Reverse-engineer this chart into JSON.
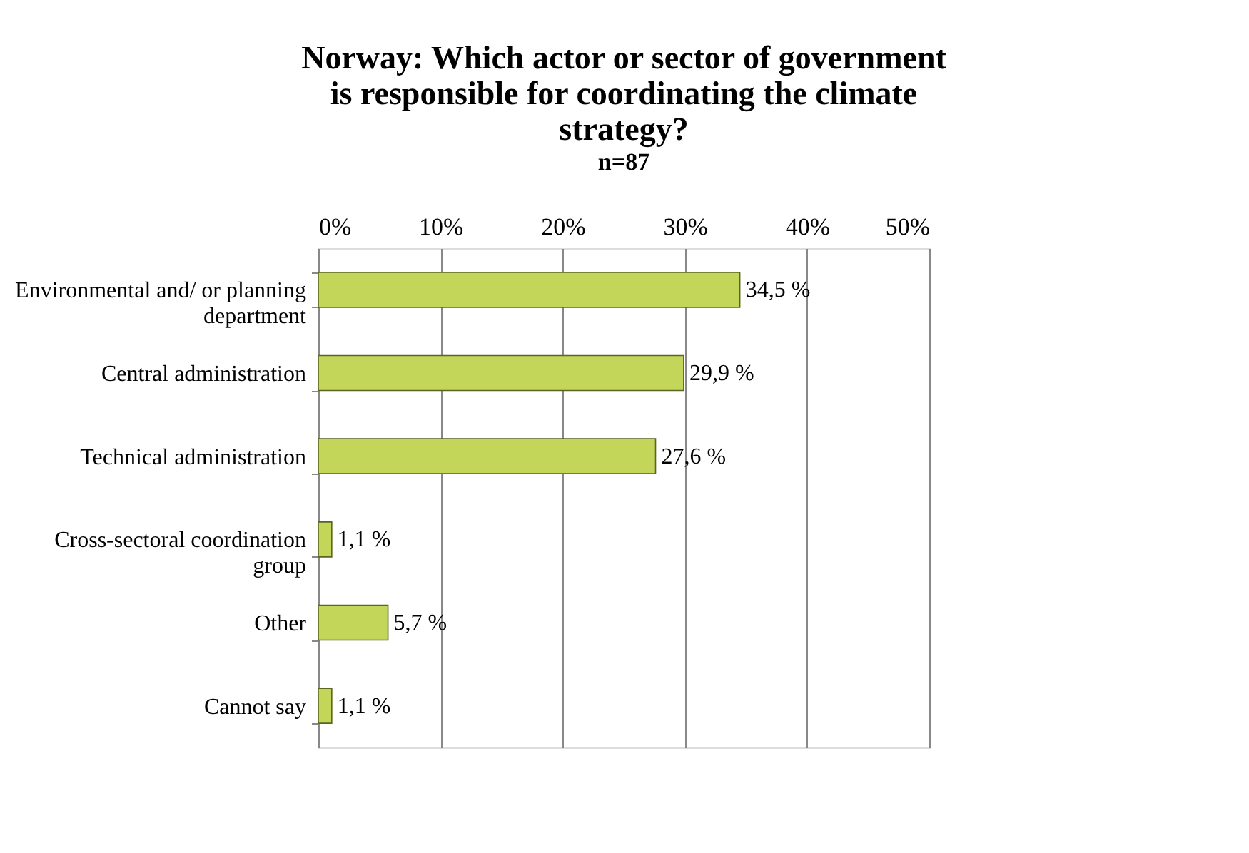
{
  "chart_data": {
    "type": "bar",
    "orientation": "horizontal",
    "title": "Norway: Which actor or sector of government is responsible for coordinating the climate strategy?",
    "subtitle": "n=87",
    "categories": [
      "Environmental and/ or planning department",
      "Central administration",
      "Technical administration",
      "Cross-sectoral coordination group",
      "Other",
      "Cannot say"
    ],
    "values": [
      34.5,
      29.9,
      27.6,
      1.1,
      5.7,
      1.1
    ],
    "value_labels": [
      "34,5 %",
      "29,9 %",
      "27,6 %",
      "1,1 %",
      "5,7 %",
      "1,1 %"
    ],
    "color": "#c4d65a",
    "xlim": [
      0,
      50
    ],
    "xticks": [
      {
        "value": 0,
        "label": "0%"
      },
      {
        "value": 10,
        "label": "10%"
      },
      {
        "value": 20,
        "label": "20%"
      },
      {
        "value": 30,
        "label": "30%"
      },
      {
        "value": 40,
        "label": "40%"
      },
      {
        "value": 50,
        "label": "50%"
      }
    ],
    "grid": "x"
  }
}
